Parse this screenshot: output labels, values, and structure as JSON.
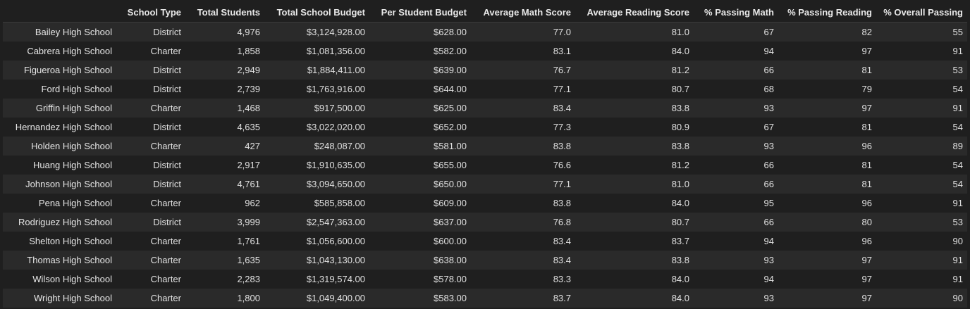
{
  "table": {
    "columns": [
      "",
      "School Type",
      "Total Students",
      "Total School Budget",
      "Per Student Budget",
      "Average Math Score",
      "Average Reading Score",
      "% Passing Math",
      "% Passing Reading",
      "% Overall Passing"
    ],
    "rows": [
      [
        "Bailey High School",
        "District",
        "4,976",
        "$3,124,928.00",
        "$628.00",
        "77.0",
        "81.0",
        "67",
        "82",
        "55"
      ],
      [
        "Cabrera High School",
        "Charter",
        "1,858",
        "$1,081,356.00",
        "$582.00",
        "83.1",
        "84.0",
        "94",
        "97",
        "91"
      ],
      [
        "Figueroa High School",
        "District",
        "2,949",
        "$1,884,411.00",
        "$639.00",
        "76.7",
        "81.2",
        "66",
        "81",
        "53"
      ],
      [
        "Ford High School",
        "District",
        "2,739",
        "$1,763,916.00",
        "$644.00",
        "77.1",
        "80.7",
        "68",
        "79",
        "54"
      ],
      [
        "Griffin High School",
        "Charter",
        "1,468",
        "$917,500.00",
        "$625.00",
        "83.4",
        "83.8",
        "93",
        "97",
        "91"
      ],
      [
        "Hernandez High School",
        "District",
        "4,635",
        "$3,022,020.00",
        "$652.00",
        "77.3",
        "80.9",
        "67",
        "81",
        "54"
      ],
      [
        "Holden High School",
        "Charter",
        "427",
        "$248,087.00",
        "$581.00",
        "83.8",
        "83.8",
        "93",
        "96",
        "89"
      ],
      [
        "Huang High School",
        "District",
        "2,917",
        "$1,910,635.00",
        "$655.00",
        "76.6",
        "81.2",
        "66",
        "81",
        "54"
      ],
      [
        "Johnson High School",
        "District",
        "4,761",
        "$3,094,650.00",
        "$650.00",
        "77.1",
        "81.0",
        "66",
        "81",
        "54"
      ],
      [
        "Pena High School",
        "Charter",
        "962",
        "$585,858.00",
        "$609.00",
        "83.8",
        "84.0",
        "95",
        "96",
        "91"
      ],
      [
        "Rodriguez High School",
        "District",
        "3,999",
        "$2,547,363.00",
        "$637.00",
        "76.8",
        "80.7",
        "66",
        "80",
        "53"
      ],
      [
        "Shelton High School",
        "Charter",
        "1,761",
        "$1,056,600.00",
        "$600.00",
        "83.4",
        "83.7",
        "94",
        "96",
        "90"
      ],
      [
        "Thomas High School",
        "Charter",
        "1,635",
        "$1,043,130.00",
        "$638.00",
        "83.4",
        "83.8",
        "93",
        "97",
        "91"
      ],
      [
        "Wilson High School",
        "Charter",
        "2,283",
        "$1,319,574.00",
        "$578.00",
        "83.3",
        "84.0",
        "94",
        "97",
        "91"
      ],
      [
        "Wright High School",
        "Charter",
        "1,800",
        "$1,049,400.00",
        "$583.00",
        "83.7",
        "84.0",
        "93",
        "97",
        "90"
      ]
    ]
  },
  "colors": {
    "background": "#1f1f1f",
    "row_stripe": "#2a2a2a",
    "text": "#e0e0e0"
  }
}
